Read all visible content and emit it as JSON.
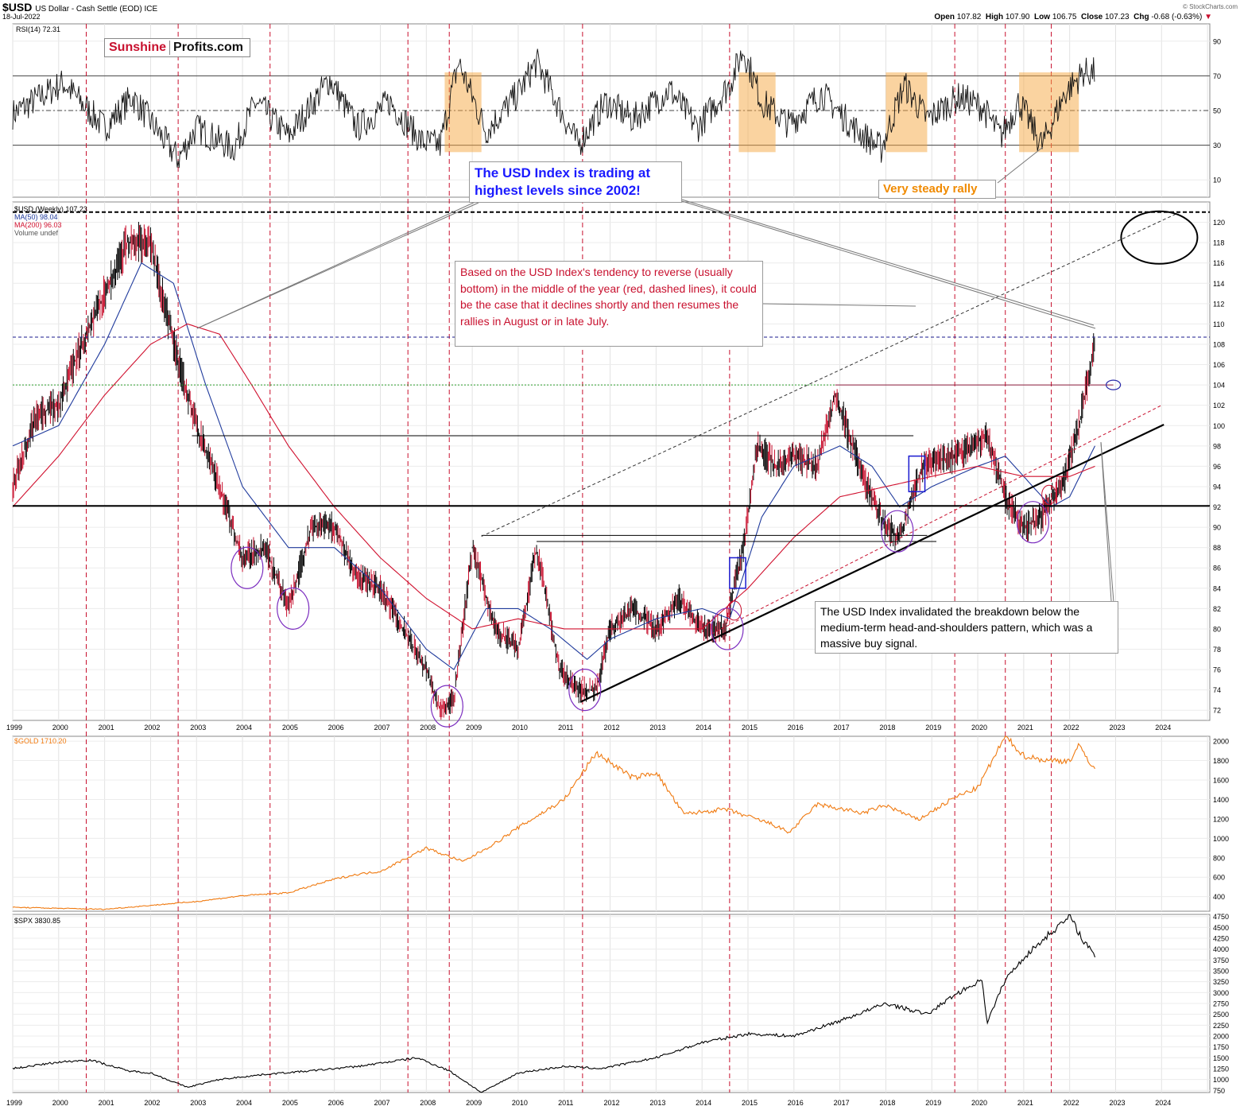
{
  "header": {
    "symbol": "$USD",
    "subtitle": "US Dollar - Cash Settle (EOD)  ICE",
    "date": "18-Jul-2022",
    "open_label": "Open",
    "open": "107.82",
    "high_label": "High",
    "high": "107.90",
    "low_label": "Low",
    "low": "106.75",
    "close_label": "Close",
    "close": "107.23",
    "chg_label": "Chg",
    "chg": "-0.68 (-0.63%)",
    "copyright": "© StockCharts.com"
  },
  "logo": {
    "part1": "Sunshine",
    "part2": "Profits.com"
  },
  "annotations": {
    "highest_levels": "The USD Index is trading at highest levels since 2002!",
    "reversal": "Based on the USD Index's tendency to reverse (usually bottom) in the middle of the year (red, dashed lines), it could be the case that it declines shortly and then resumes the rallies in August or in late July.",
    "head_shoulders": "The USD Index invalidated the breakdown below the medium-term head-and-shoulders pattern, which was a massive buy signal.",
    "steady_rally": "Very steady rally"
  },
  "colors": {
    "usd_bar": "#000000",
    "usd_bar_down": "#c8102e",
    "ma50": "#1f3a9c",
    "ma200": "#d0102e",
    "gold": "#f07a10",
    "spx": "#000000",
    "reversal_lines": "#c8102e",
    "orange_box": "#f5a742",
    "rsi_overbought": "#2e6b2e"
  },
  "chart_data": [
    {
      "type": "line",
      "panel": "RSI",
      "legend": "RSI(14) 72.31",
      "ylim": [
        0,
        100
      ],
      "yticks": [
        10,
        30,
        50,
        70,
        90
      ],
      "reference_lines": [
        30,
        50,
        70
      ],
      "series": [
        {
          "name": "RSI(14)",
          "x": [
            1999.0,
            2000.1,
            2001.0,
            2001.6,
            2002.6,
            2003.0,
            2003.8,
            2004.3,
            2005.0,
            2005.9,
            2006.5,
            2007.2,
            2007.9,
            2008.3,
            2008.7,
            2009.3,
            2010.0,
            2010.4,
            2011.3,
            2011.9,
            2012.5,
            2013.3,
            2013.9,
            2014.6,
            2014.9,
            2015.3,
            2015.9,
            2016.6,
            2017.3,
            2017.9,
            2018.4,
            2018.9,
            2019.6,
            2020.1,
            2020.5,
            2020.9,
            2021.4,
            2021.9,
            2022.3,
            2022.55
          ],
          "values": [
            48,
            66,
            40,
            58,
            22,
            40,
            28,
            55,
            35,
            68,
            40,
            55,
            32,
            30,
            78,
            38,
            60,
            78,
            30,
            55,
            45,
            62,
            40,
            65,
            85,
            55,
            42,
            60,
            40,
            28,
            65,
            45,
            58,
            52,
            35,
            55,
            30,
            60,
            72,
            72
          ]
        }
      ],
      "highlight_periods": [
        [
          2008.4,
          2009.2
        ],
        [
          2014.8,
          2015.6
        ],
        [
          2018.0,
          2018.9
        ],
        [
          2020.9,
          2022.2
        ]
      ]
    },
    {
      "type": "line",
      "panel": "USD Index (Weekly)",
      "legend": [
        "$USD (Weekly) 107.23",
        "MA(50) 98.04",
        "MA(200) 96.03",
        "Volume undef"
      ],
      "ylim": [
        71,
        122
      ],
      "yticks": [
        72,
        74,
        76,
        78,
        80,
        82,
        84,
        86,
        88,
        90,
        92,
        94,
        96,
        98,
        100,
        102,
        104,
        106,
        108,
        110,
        112,
        114,
        116,
        118,
        120
      ],
      "xticks": [
        "1999",
        "2000",
        "2001",
        "2002",
        "2003",
        "2004",
        "2005",
        "2006",
        "2007",
        "2008",
        "2009",
        "2010",
        "2011",
        "2012",
        "2013",
        "2014",
        "2015",
        "2016",
        "2017",
        "2018",
        "2019",
        "2020",
        "2021",
        "2022",
        "2023",
        "2024"
      ],
      "series": [
        {
          "name": "$USD",
          "x": [
            1999.0,
            1999.5,
            2000.0,
            2000.5,
            2001.0,
            2001.5,
            2002.0,
            2002.5,
            2003.0,
            2003.5,
            2004.0,
            2004.5,
            2005.0,
            2005.5,
            2006.0,
            2006.5,
            2007.0,
            2007.5,
            2008.0,
            2008.3,
            2008.6,
            2009.0,
            2009.5,
            2010.0,
            2010.4,
            2010.9,
            2011.3,
            2011.7,
            2012.0,
            2012.5,
            2013.0,
            2013.5,
            2014.0,
            2014.5,
            2014.9,
            2015.2,
            2015.6,
            2016.0,
            2016.5,
            2016.9,
            2017.5,
            2018.0,
            2018.3,
            2018.8,
            2019.5,
            2020.2,
            2020.6,
            2021.0,
            2021.4,
            2021.9,
            2022.2,
            2022.55
          ],
          "values": [
            94,
            101,
            102,
            108,
            113,
            118,
            118,
            108,
            100,
            94,
            87,
            88,
            82,
            90,
            90,
            85,
            84,
            80,
            76,
            72,
            73,
            88,
            80,
            78,
            88,
            76,
            74,
            74,
            80,
            82,
            80,
            83,
            80,
            80,
            88,
            98,
            96,
            97,
            96,
            103,
            95,
            90,
            89,
            96,
            97,
            99,
            93,
            90,
            91,
            95,
            100,
            108
          ]
        },
        {
          "name": "MA(50)",
          "x": [
            1999.0,
            2000.0,
            2001.0,
            2001.8,
            2002.5,
            2003.2,
            2004.0,
            2005.0,
            2006.0,
            2007.0,
            2008.0,
            2008.6,
            2009.3,
            2010.0,
            2010.7,
            2011.5,
            2012.0,
            2013.0,
            2014.0,
            2014.6,
            2015.3,
            2016.0,
            2017.0,
            2017.7,
            2018.3,
            2019.0,
            2020.0,
            2020.6,
            2021.0,
            2021.6,
            2022.0,
            2022.55
          ],
          "values": [
            98,
            100,
            108,
            116,
            114,
            104,
            94,
            88,
            88,
            84,
            78,
            76,
            82,
            82,
            80,
            77,
            79,
            81,
            82,
            81,
            91,
            96,
            98,
            96,
            92,
            94,
            96,
            97,
            95,
            92,
            93,
            98
          ]
        },
        {
          "name": "MA(200)",
          "x": [
            1999.0,
            2000.0,
            2001.0,
            2002.0,
            2002.8,
            2003.5,
            2004.2,
            2005.0,
            2006.0,
            2007.0,
            2008.0,
            2009.0,
            2010.0,
            2011.0,
            2012.0,
            2013.0,
            2014.0,
            2015.0,
            2016.0,
            2017.0,
            2018.0,
            2019.0,
            2020.0,
            2021.0,
            2022.0,
            2022.55
          ],
          "values": [
            92,
            97,
            103,
            108,
            110,
            109,
            104,
            98,
            92,
            87,
            83,
            80,
            81,
            80,
            80,
            80,
            80,
            84,
            89,
            93,
            94,
            95,
            96,
            95,
            95,
            96
          ]
        }
      ],
      "horizontal_lines": [
        92.1,
        104.0,
        108.7,
        121.0
      ],
      "reversal_years": [
        2000.6,
        2002.6,
        2004.6,
        2007.6,
        2008.5,
        2011.4,
        2014.6,
        2019.5,
        2020.6,
        2021.6
      ]
    },
    {
      "type": "line",
      "panel": "GOLD",
      "legend": "$GOLD 1710.20",
      "ylim": [
        250,
        2050
      ],
      "yticks": [
        400,
        600,
        800,
        1000,
        1200,
        1400,
        1600,
        1800,
        2000
      ],
      "series": [
        {
          "name": "$GOLD",
          "x": [
            1999.0,
            2000.0,
            2001.0,
            2002.0,
            2003.0,
            2004.0,
            2005.0,
            2006.0,
            2006.5,
            2007.0,
            2008.0,
            2008.8,
            2009.5,
            2010.0,
            2011.0,
            2011.7,
            2012.5,
            2013.0,
            2013.6,
            2014.5,
            2015.5,
            2015.9,
            2016.5,
            2017.5,
            2018.0,
            2018.7,
            2019.5,
            2020.0,
            2020.6,
            2021.0,
            2021.5,
            2022.0,
            2022.2,
            2022.55
          ],
          "values": [
            290,
            280,
            270,
            310,
            350,
            410,
            440,
            580,
            630,
            660,
            900,
            760,
            950,
            1110,
            1400,
            1880,
            1620,
            1680,
            1250,
            1300,
            1150,
            1060,
            1350,
            1260,
            1340,
            1190,
            1420,
            1520,
            2050,
            1850,
            1800,
            1800,
            1950,
            1710
          ]
        }
      ]
    },
    {
      "type": "line",
      "panel": "SPX",
      "legend": "$SPX 3830.85",
      "ylim": [
        700,
        4800
      ],
      "yticks": [
        750,
        1000,
        1250,
        1500,
        1750,
        2000,
        2250,
        2500,
        2750,
        3000,
        3250,
        3500,
        3750,
        4000,
        4250,
        4500,
        4750
      ],
      "series": [
        {
          "name": "$SPX",
          "x": [
            1999.0,
            2000.0,
            2000.7,
            2001.5,
            2002.0,
            2002.8,
            2003.5,
            2004.5,
            2005.5,
            2006.5,
            2007.8,
            2008.5,
            2009.2,
            2010.0,
            2011.0,
            2011.8,
            2013.0,
            2014.0,
            2015.0,
            2016.0,
            2017.0,
            2018.0,
            2018.9,
            2019.5,
            2020.1,
            2020.2,
            2020.6,
            2021.0,
            2021.5,
            2022.0,
            2022.3,
            2022.55
          ],
          "values": [
            1250,
            1400,
            1450,
            1200,
            1150,
            820,
            1000,
            1120,
            1200,
            1300,
            1500,
            1200,
            700,
            1150,
            1300,
            1250,
            1500,
            1850,
            2050,
            2000,
            2350,
            2750,
            2500,
            2950,
            3300,
            2300,
            3300,
            3800,
            4300,
            4750,
            4200,
            3830
          ]
        }
      ]
    }
  ]
}
